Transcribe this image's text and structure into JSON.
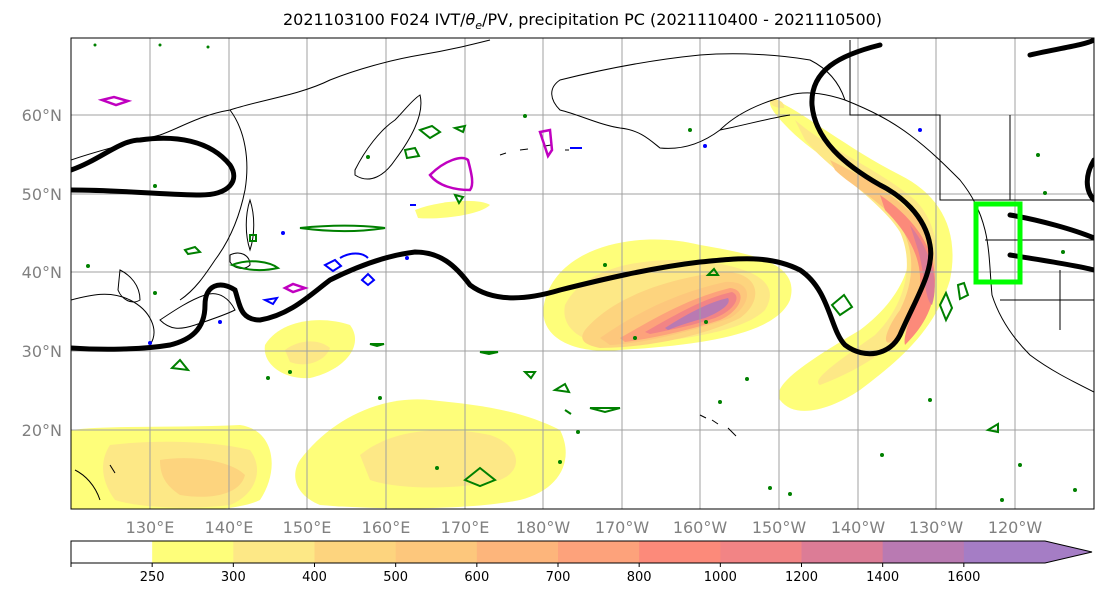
{
  "title": {
    "prefix": "2021103100 F024 IVT/",
    "theta": "θ",
    "theta_sub": "e",
    "suffix": "/PV, precipitation PC (2021110400 - 2021110500)"
  },
  "lat_labels": [
    "60°N",
    "50°N",
    "40°N",
    "30°N",
    "20°N"
  ],
  "lon_labels": [
    "130°E",
    "140°E",
    "150°E",
    "160°E",
    "170°E",
    "180°W",
    "170°W",
    "160°W",
    "150°W",
    "140°W",
    "130°W",
    "120°W"
  ],
  "colorbar": {
    "ticks": [
      "250",
      "300",
      "400",
      "500",
      "600",
      "700",
      "800",
      "1000",
      "1200",
      "1400",
      "1600"
    ],
    "colors": [
      "#ffffff",
      "#fefe7a",
      "#fde886",
      "#fdd47e",
      "#fdc77c",
      "#fdb57b",
      "#fda27b",
      "#fc8a7a",
      "#f28485",
      "#dc7c96",
      "#b97ab2",
      "#a57dc5"
    ]
  },
  "colors": {
    "ivt_low": "#fefe7a",
    "ivt_high": "#a57dc5",
    "pv_contour": "#000000",
    "precip_pc": "#008000",
    "theta_negative": "#0000ff",
    "theta_positive": "#c000c0",
    "target_box": "#00ff00"
  },
  "map": {
    "projection": "PlateCarree",
    "lon_range": [
      "120°E",
      "115°W"
    ],
    "lat_range": [
      "10°N",
      "70°N"
    ],
    "gridlines": true
  }
}
